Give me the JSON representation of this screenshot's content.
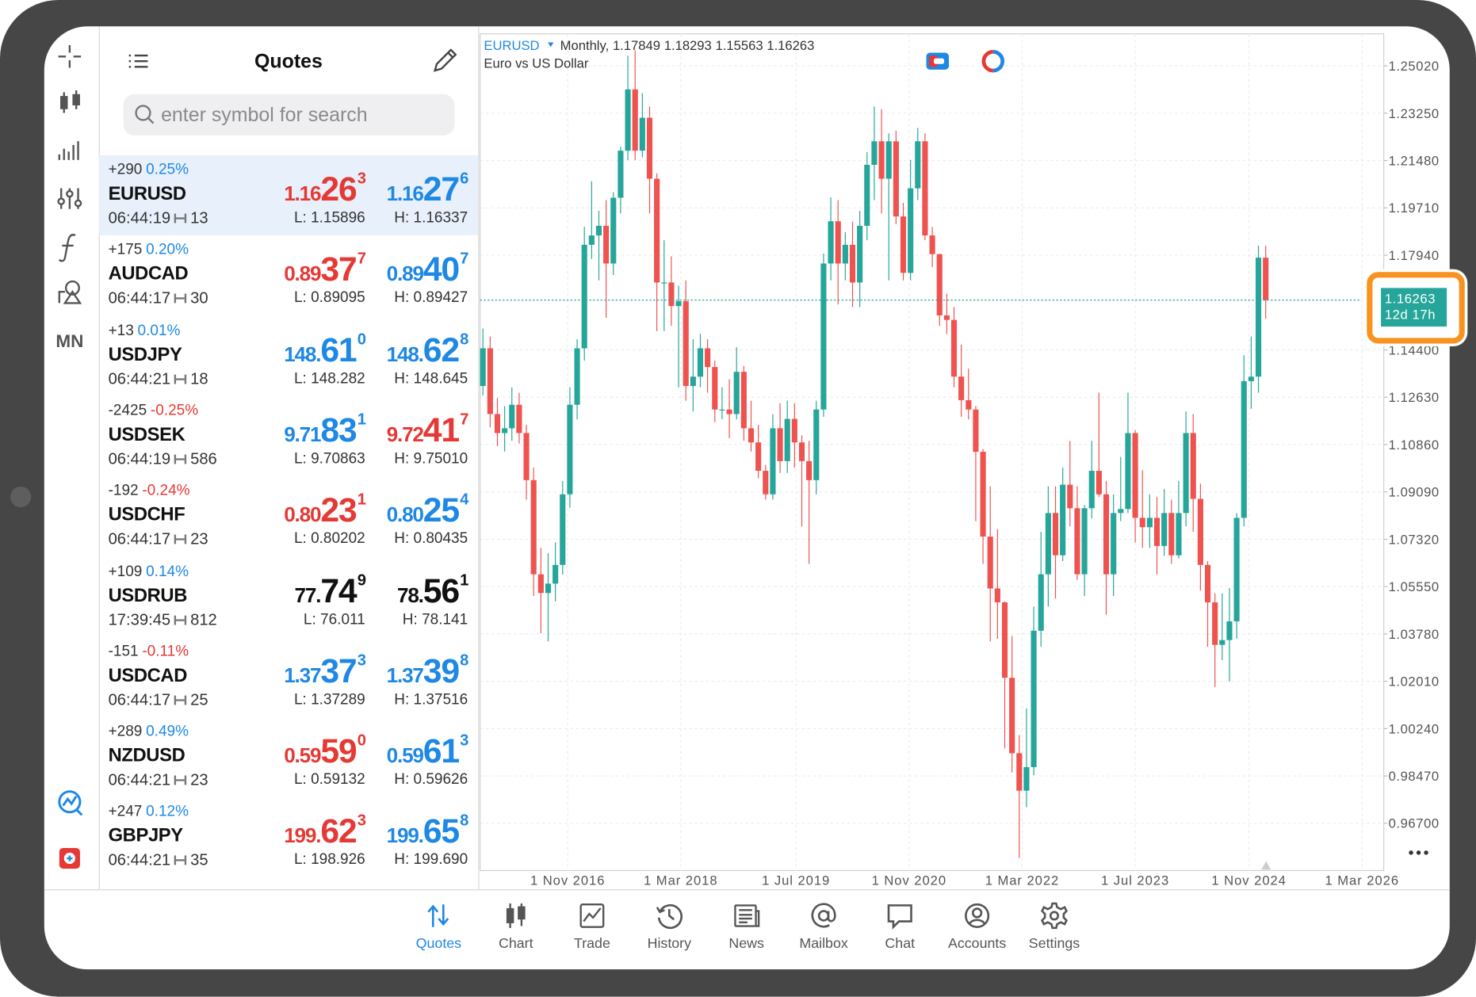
{
  "quotes": {
    "title": "Quotes",
    "search_placeholder": "enter symbol for search",
    "selected_index": 0,
    "items": [
      {
        "change": "+290",
        "change_pct": "0.25%",
        "change_color": "#1e88e5",
        "symbol": "EURUSD",
        "time": "06:44:19",
        "spread": "13",
        "bid": {
          "prefix": "1.16",
          "big": "26",
          "sup": "3"
        },
        "bid_color": "#e53935",
        "ask": {
          "prefix": "1.16",
          "big": "27",
          "sup": "6"
        },
        "ask_color": "#1e88e5",
        "low": "L: 1.15896",
        "high": "H: 1.16337"
      },
      {
        "change": "+175",
        "change_pct": "0.20%",
        "change_color": "#1e88e5",
        "symbol": "AUDCAD",
        "time": "06:44:17",
        "spread": "30",
        "bid": {
          "prefix": "0.89",
          "big": "37",
          "sup": "7"
        },
        "bid_color": "#e53935",
        "ask": {
          "prefix": "0.89",
          "big": "40",
          "sup": "7"
        },
        "ask_color": "#1e88e5",
        "low": "L: 0.89095",
        "high": "H: 0.89427"
      },
      {
        "change": "+13",
        "change_pct": "0.01%",
        "change_color": "#1e88e5",
        "symbol": "USDJPY",
        "time": "06:44:21",
        "spread": "18",
        "bid": {
          "prefix": "148.",
          "big": "61",
          "sup": "0"
        },
        "bid_color": "#1e88e5",
        "ask": {
          "prefix": "148.",
          "big": "62",
          "sup": "8"
        },
        "ask_color": "#1e88e5",
        "low": "L: 148.282",
        "high": "H: 148.645"
      },
      {
        "change": "-2425",
        "change_pct": "-0.25%",
        "change_color": "#e53935",
        "symbol": "USDSEK",
        "time": "06:44:19",
        "spread": "586",
        "bid": {
          "prefix": "9.71",
          "big": "83",
          "sup": "1"
        },
        "bid_color": "#1e88e5",
        "ask": {
          "prefix": "9.72",
          "big": "41",
          "sup": "7"
        },
        "ask_color": "#e53935",
        "low": "L: 9.70863",
        "high": "H: 9.75010"
      },
      {
        "change": "-192",
        "change_pct": "-0.24%",
        "change_color": "#e53935",
        "symbol": "USDCHF",
        "time": "06:44:17",
        "spread": "23",
        "bid": {
          "prefix": "0.80",
          "big": "23",
          "sup": "1"
        },
        "bid_color": "#e53935",
        "ask": {
          "prefix": "0.80",
          "big": "25",
          "sup": "4"
        },
        "ask_color": "#1e88e5",
        "low": "L: 0.80202",
        "high": "H: 0.80435"
      },
      {
        "change": "+109",
        "change_pct": "0.14%",
        "change_color": "#1e88e5",
        "symbol": "USDRUB",
        "time": "17:39:45",
        "spread": "812",
        "bid": {
          "prefix": "77.",
          "big": "74",
          "sup": "9"
        },
        "bid_color": "#111111",
        "ask": {
          "prefix": "78.",
          "big": "56",
          "sup": "1"
        },
        "ask_color": "#111111",
        "low": "L: 76.011",
        "high": "H: 78.141"
      },
      {
        "change": "-151",
        "change_pct": "-0.11%",
        "change_color": "#e53935",
        "symbol": "USDCAD",
        "time": "06:44:17",
        "spread": "25",
        "bid": {
          "prefix": "1.37",
          "big": "37",
          "sup": "3"
        },
        "bid_color": "#1e88e5",
        "ask": {
          "prefix": "1.37",
          "big": "39",
          "sup": "8"
        },
        "ask_color": "#1e88e5",
        "low": "L: 1.37289",
        "high": "H: 1.37516"
      },
      {
        "change": "+289",
        "change_pct": "0.49%",
        "change_color": "#1e88e5",
        "symbol": "NZDUSD",
        "time": "06:44:21",
        "spread": "23",
        "bid": {
          "prefix": "0.59",
          "big": "59",
          "sup": "0"
        },
        "bid_color": "#e53935",
        "ask": {
          "prefix": "0.59",
          "big": "61",
          "sup": "3"
        },
        "ask_color": "#1e88e5",
        "low": "L: 0.59132",
        "high": "H: 0.59626"
      },
      {
        "change": "+247",
        "change_pct": "0.12%",
        "change_color": "#1e88e5",
        "symbol": "GBPJPY",
        "time": "06:44:21",
        "spread": "35",
        "bid": {
          "prefix": "199.",
          "big": "62",
          "sup": "3"
        },
        "bid_color": "#e53935",
        "ask": {
          "prefix": "199.",
          "big": "65",
          "sup": "8"
        },
        "ask_color": "#1e88e5",
        "low": "L: 198.926",
        "high": "H: 199.690"
      }
    ]
  },
  "sidebar": {
    "timeframe": "MN"
  },
  "chart_data": {
    "type": "candlestick",
    "symbol": "EURUSD",
    "timeframe": "Monthly,",
    "description": "Euro vs US Dollar",
    "countdown": "12d 17h",
    "up_color": "#26a69a",
    "down_color": "#ef5350",
    "grid": true,
    "ylim": [
      0.94933,
      1.26216
    ],
    "yticks": [
      {
        "value": 1.2502,
        "label": "1.25020"
      },
      {
        "value": 1.2325,
        "label": "1.23250"
      },
      {
        "value": 1.2148,
        "label": "1.21480"
      },
      {
        "value": 1.1971,
        "label": "1.19710"
      },
      {
        "value": 1.1794,
        "label": "1.17940"
      },
      {
        "value": 1.144,
        "label": "1.14400"
      },
      {
        "value": 1.1263,
        "label": "1.12630"
      },
      {
        "value": 1.1086,
        "label": "1.10860"
      },
      {
        "value": 1.0909,
        "label": "1.09090"
      },
      {
        "value": 1.0732,
        "label": "1.07320"
      },
      {
        "value": 1.0555,
        "label": "1.05550"
      },
      {
        "value": 1.0378,
        "label": "1.03780"
      },
      {
        "value": 1.0201,
        "label": "1.02010"
      },
      {
        "value": 1.0024,
        "label": "1.00240"
      },
      {
        "value": 0.9847,
        "label": "0.98470"
      },
      {
        "value": 0.967,
        "label": "0.96700"
      }
    ],
    "xlim": [
      -0.39,
      124.29
    ],
    "xticks": [
      {
        "value": 11.7,
        "label": "1 Nov 2016"
      },
      {
        "value": 27.3,
        "label": "1 Mar 2018"
      },
      {
        "value": 43.2,
        "label": "1 Jul 2019"
      },
      {
        "value": 58.8,
        "label": "1 Nov 2020"
      },
      {
        "value": 74.4,
        "label": "1 Mar 2022"
      },
      {
        "value": 90,
        "label": "1 Jul 2023"
      },
      {
        "value": 105.7,
        "label": "1 Nov 2024"
      },
      {
        "value": 121.3,
        "label": "1 Mar 2026"
      }
    ],
    "candles": [
      [
        1.1305,
        1.152,
        1.127,
        1.1446
      ],
      [
        1.1446,
        1.149,
        1.115,
        1.12
      ],
      [
        1.12,
        1.126,
        1.108,
        1.1129
      ],
      [
        1.1129,
        1.123,
        1.106,
        1.1147
      ],
      [
        1.1147,
        1.13,
        1.11,
        1.1235
      ],
      [
        1.1235,
        1.128,
        1.109,
        1.1129
      ],
      [
        1.1129,
        1.116,
        1.088,
        1.0953
      ],
      [
        1.0953,
        1.1,
        1.052,
        1.0601
      ],
      [
        1.0601,
        1.07,
        1.038,
        1.0531
      ],
      [
        1.0531,
        1.068,
        1.035,
        1.0566
      ],
      [
        1.0566,
        1.072,
        1.05,
        1.0636
      ],
      [
        1.0636,
        1.095,
        1.06,
        1.09
      ],
      [
        1.09,
        1.13,
        1.085,
        1.1235
      ],
      [
        1.1235,
        1.148,
        1.118,
        1.1446
      ],
      [
        1.1446,
        1.19,
        1.14,
        1.1833
      ],
      [
        1.1833,
        1.207,
        1.178,
        1.1868
      ],
      [
        1.1868,
        1.196,
        1.17,
        1.1904
      ],
      [
        1.1904,
        1.2,
        1.156,
        1.1763
      ],
      [
        1.1763,
        1.203,
        1.172,
        1.2009
      ],
      [
        1.2009,
        1.22,
        1.195,
        1.2185
      ],
      [
        1.2185,
        1.254,
        1.215,
        1.2414
      ],
      [
        1.2414,
        1.256,
        1.215,
        1.2185
      ],
      [
        1.2185,
        1.24,
        1.216,
        1.2308
      ],
      [
        1.2308,
        1.235,
        1.195,
        1.208
      ],
      [
        1.208,
        1.21,
        1.151,
        1.1692
      ],
      [
        1.1692,
        1.185,
        1.151,
        1.1692
      ],
      [
        1.1692,
        1.179,
        1.153,
        1.1604
      ],
      [
        1.1604,
        1.168,
        1.13,
        1.1622
      ],
      [
        1.1622,
        1.17,
        1.125,
        1.1305
      ],
      [
        1.1305,
        1.148,
        1.121,
        1.134
      ],
      [
        1.134,
        1.15,
        1.13,
        1.1446
      ],
      [
        1.1446,
        1.148,
        1.128,
        1.1376
      ],
      [
        1.1376,
        1.14,
        1.117,
        1.1217
      ],
      [
        1.1217,
        1.13,
        1.118,
        1.1217
      ],
      [
        1.1217,
        1.133,
        1.111,
        1.12
      ],
      [
        1.12,
        1.145,
        1.118,
        1.1358
      ],
      [
        1.1358,
        1.138,
        1.11,
        1.1147
      ],
      [
        1.1147,
        1.125,
        1.106,
        1.1094
      ],
      [
        1.1094,
        1.116,
        1.096,
        1.0988
      ],
      [
        1.0988,
        1.101,
        1.088,
        1.09
      ],
      [
        1.09,
        1.12,
        1.088,
        1.1147
      ],
      [
        1.1147,
        1.124,
        1.098,
        1.1024
      ],
      [
        1.1024,
        1.125,
        1.098,
        1.1182
      ],
      [
        1.1182,
        1.124,
        1.1,
        1.1094
      ],
      [
        1.1094,
        1.112,
        1.078,
        1.1024
      ],
      [
        1.1024,
        1.11,
        1.064,
        1.0953
      ],
      [
        1.0953,
        1.125,
        1.09,
        1.1217
      ],
      [
        1.1217,
        1.18,
        1.119,
        1.1763
      ],
      [
        1.1763,
        1.201,
        1.17,
        1.1921
      ],
      [
        1.1921,
        1.2,
        1.161,
        1.1763
      ],
      [
        1.1763,
        1.188,
        1.17,
        1.1833
      ],
      [
        1.1833,
        1.192,
        1.16,
        1.1692
      ],
      [
        1.1692,
        1.196,
        1.16,
        1.1904
      ],
      [
        1.1904,
        1.218,
        1.185,
        1.2132
      ],
      [
        1.2132,
        1.235,
        1.2,
        1.222
      ],
      [
        1.222,
        1.234,
        1.195,
        1.208
      ],
      [
        1.208,
        1.225,
        1.17,
        1.222
      ],
      [
        1.222,
        1.226,
        1.191,
        1.1939
      ],
      [
        1.1939,
        1.199,
        1.17,
        1.1728
      ],
      [
        1.1728,
        1.215,
        1.17,
        1.2044
      ],
      [
        1.2044,
        1.227,
        1.2,
        1.222
      ],
      [
        1.222,
        1.225,
        1.185,
        1.1868
      ],
      [
        1.1868,
        1.19,
        1.175,
        1.1798
      ],
      [
        1.1798,
        1.18,
        1.153,
        1.1569
      ],
      [
        1.1569,
        1.165,
        1.15,
        1.1552
      ],
      [
        1.1552,
        1.16,
        1.13,
        1.134
      ],
      [
        1.134,
        1.146,
        1.119,
        1.1252
      ],
      [
        1.1252,
        1.137,
        1.118,
        1.1217
      ],
      [
        1.1217,
        1.123,
        1.08,
        1.1059
      ],
      [
        1.1059,
        1.107,
        1.064,
        1.0742
      ],
      [
        1.0742,
        1.093,
        1.035,
        1.0548
      ],
      [
        1.0548,
        1.077,
        1.036,
        1.0496
      ],
      [
        1.0496,
        1.05,
        0.995,
        1.0214
      ],
      [
        1.0214,
        1.037,
        0.986,
        0.9932
      ],
      [
        0.9932,
        1.0,
        0.954,
        0.9792
      ],
      [
        0.9792,
        1.01,
        0.973,
        0.988
      ],
      [
        0.988,
        1.048,
        0.985,
        1.039
      ],
      [
        1.039,
        1.076,
        1.033,
        1.0601
      ],
      [
        1.0601,
        1.093,
        1.048,
        1.083
      ],
      [
        1.083,
        1.093,
        1.051,
        1.0672
      ],
      [
        1.0672,
        1.1,
        1.065,
        1.0936
      ],
      [
        1.0936,
        1.11,
        1.078,
        1.0848
      ],
      [
        1.0848,
        1.093,
        1.058,
        1.0601
      ],
      [
        1.0601,
        1.086,
        1.052,
        1.0848
      ],
      [
        1.0848,
        1.11,
        1.081,
        1.0988
      ],
      [
        1.0988,
        1.128,
        1.089,
        1.09
      ],
      [
        1.09,
        1.095,
        1.045,
        1.0601
      ],
      [
        1.0601,
        1.09,
        1.052,
        1.083
      ],
      [
        1.083,
        1.104,
        1.08,
        1.0845
      ],
      [
        1.0845,
        1.128,
        1.083,
        1.1129
      ],
      [
        1.1129,
        1.114,
        1.072,
        1.0812
      ],
      [
        1.0812,
        1.099,
        1.07,
        1.0777
      ],
      [
        1.0777,
        1.09,
        1.07,
        1.0812
      ],
      [
        1.0812,
        1.089,
        1.06,
        1.0707
      ],
      [
        1.0707,
        1.092,
        1.067,
        1.083
      ],
      [
        1.083,
        1.088,
        1.064,
        1.0672
      ],
      [
        1.0672,
        1.095,
        1.066,
        1.083
      ],
      [
        1.083,
        1.121,
        1.078,
        1.1129
      ],
      [
        1.1129,
        1.12,
        1.076,
        1.0883
      ],
      [
        1.0883,
        1.094,
        1.054,
        1.0636
      ],
      [
        1.0636,
        1.065,
        1.033,
        1.0496
      ],
      [
        1.0496,
        1.053,
        1.018,
        1.0337
      ],
      [
        1.0337,
        1.053,
        1.028,
        1.0355
      ],
      [
        1.0355,
        1.055,
        1.02,
        1.0425
      ],
      [
        1.0425,
        1.083,
        1.036,
        1.0812
      ],
      [
        1.0812,
        1.142,
        1.078,
        1.1323
      ],
      [
        1.1323,
        1.149,
        1.122,
        1.134
      ],
      [
        1.134,
        1.183,
        1.128,
        1.17849
      ],
      [
        1.17849,
        1.18293,
        1.15563,
        1.16263
      ]
    ]
  },
  "nav": {
    "active_index": 0,
    "items": [
      "Quotes",
      "Chart",
      "Trade",
      "History",
      "News",
      "Mailbox",
      "Chat",
      "Accounts",
      "Settings"
    ]
  }
}
